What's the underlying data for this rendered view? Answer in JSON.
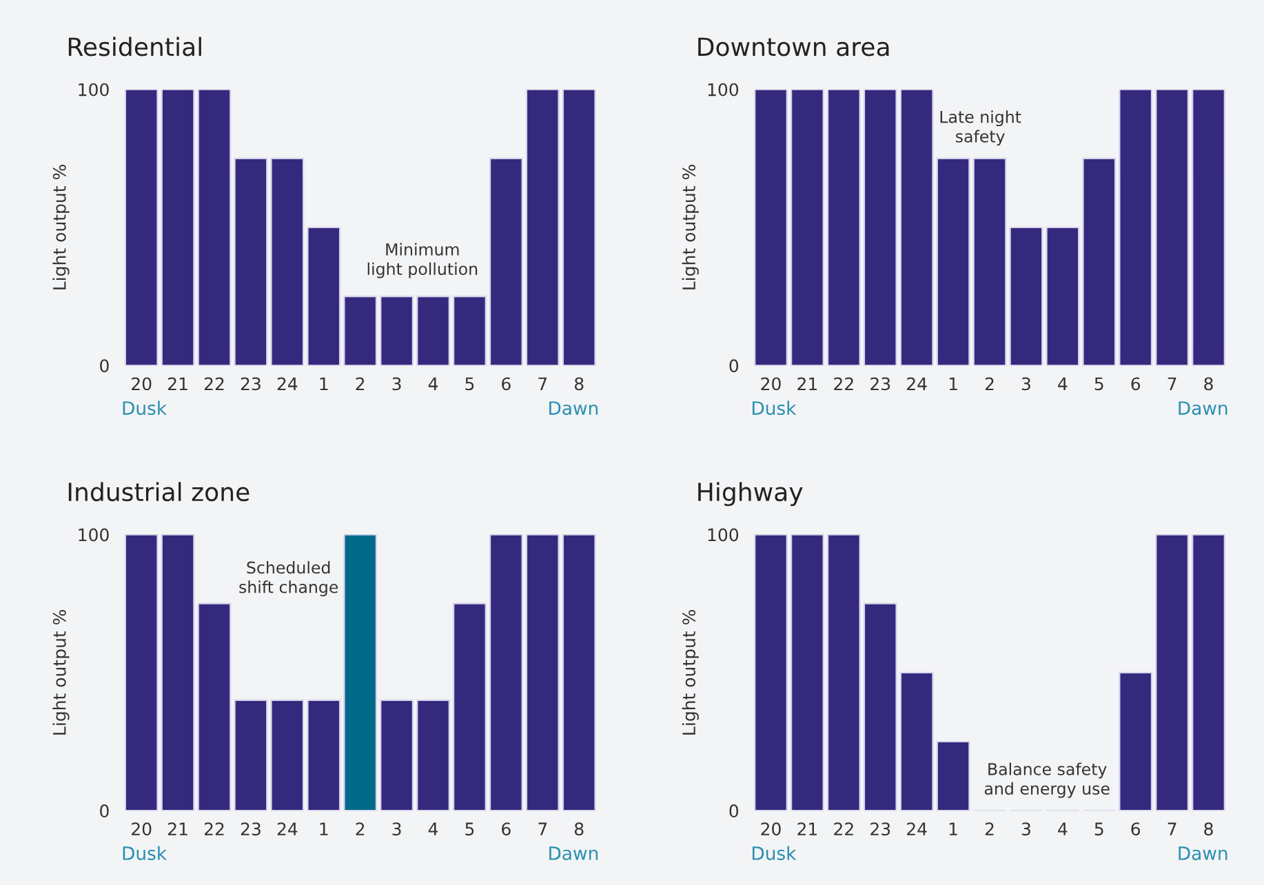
{
  "chart_data": [
    {
      "type": "bar",
      "title": "Residential",
      "ylabel": "Light output %",
      "categories": [
        "20",
        "21",
        "22",
        "23",
        "24",
        "1",
        "2",
        "3",
        "4",
        "5",
        "6",
        "7",
        "8"
      ],
      "values": [
        100,
        100,
        100,
        75,
        75,
        50,
        25,
        25,
        25,
        25,
        75,
        100,
        100
      ],
      "color": "#35297d",
      "ylim": [
        0,
        100
      ],
      "yticks": [
        0,
        100
      ],
      "annotations": [
        "Minimum\nlight pollution",
        "Dusk",
        "Dawn"
      ]
    },
    {
      "type": "bar",
      "title": "Downtown area",
      "ylabel": "Light output %",
      "categories": [
        "20",
        "21",
        "22",
        "23",
        "24",
        "1",
        "2",
        "3",
        "4",
        "5",
        "6",
        "7",
        "8"
      ],
      "values": [
        100,
        100,
        100,
        100,
        100,
        75,
        75,
        50,
        50,
        75,
        100,
        100,
        100
      ],
      "color": "#35297d",
      "ylim": [
        0,
        100
      ],
      "yticks": [
        0,
        100
      ],
      "annotations": [
        "Late night\nsafety",
        "Dusk",
        "Dawn"
      ]
    },
    {
      "type": "bar",
      "title": "Industrial zone",
      "ylabel": "Light output %",
      "categories": [
        "20",
        "21",
        "22",
        "23",
        "24",
        "1",
        "2",
        "3",
        "4",
        "5",
        "6",
        "7",
        "8"
      ],
      "values": [
        100,
        100,
        75,
        40,
        40,
        40,
        100,
        40,
        40,
        75,
        100,
        100,
        100
      ],
      "colors": [
        "#35297d",
        "#35297d",
        "#35297d",
        "#35297d",
        "#35297d",
        "#35297d",
        "#006a8a",
        "#35297d",
        "#35297d",
        "#35297d",
        "#35297d",
        "#35297d",
        "#35297d"
      ],
      "ylim": [
        0,
        100
      ],
      "yticks": [
        0,
        100
      ],
      "annotations": [
        "Scheduled\nshift change",
        "Dusk",
        "Dawn"
      ]
    },
    {
      "type": "bar",
      "title": "Highway",
      "ylabel": "Light output %",
      "categories": [
        "20",
        "21",
        "22",
        "23",
        "24",
        "1",
        "2",
        "3",
        "4",
        "5",
        "6",
        "7",
        "8"
      ],
      "values": [
        100,
        100,
        100,
        75,
        50,
        25,
        0,
        0,
        0,
        0,
        50,
        100,
        100
      ],
      "color": "#35297d",
      "ylim": [
        0,
        100
      ],
      "yticks": [
        0,
        100
      ],
      "annotations": [
        "Balance safety\nand energy use",
        "Dusk",
        "Dawn"
      ]
    }
  ]
}
